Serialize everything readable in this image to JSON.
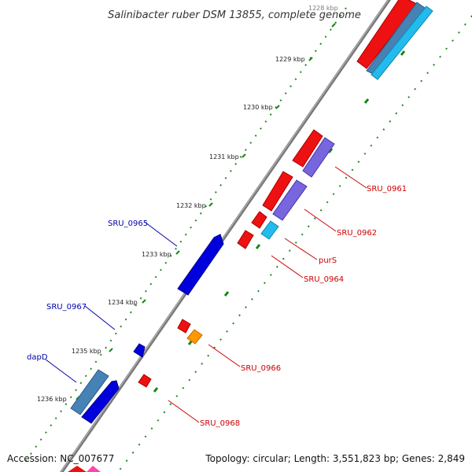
{
  "title": "Salinibacter ruber DSM 13855, complete genome",
  "footer": {
    "accession": "Accession: NC_007677",
    "summary": "Topology: circular; Length: 3,551,823 bp; Genes: 2,849"
  },
  "ticks": [
    "1228 kbp",
    "1229 kbp",
    "1230 kbp",
    "1231 kbp",
    "1232 kbp",
    "1233 kbp",
    "1234 kbp",
    "1235 kbp",
    "1236 kbp"
  ],
  "gene_labels": {
    "sru_0961": "SRU_0961",
    "sru_0962": "SRU_0962",
    "purs": "purS",
    "sru_0964": "SRU_0964",
    "sru_0965": "SRU_0965",
    "sru_0966": "SRU_0966",
    "sru_0967": "SRU_0967",
    "sru_0968": "SRU_0968",
    "dapd": "dapD"
  },
  "colors": {
    "forward_label": "#cc0000",
    "reverse_label": "#0000aa",
    "cds_red": "#ee1111",
    "cds_blue": "#0000dd",
    "cds_steelblue": "#4682b4",
    "cds_skyblue": "#22bbee",
    "cds_purple": "#7766dd",
    "cds_orange": "#ff9900",
    "backbone": "#888888",
    "dots": "#228822"
  }
}
